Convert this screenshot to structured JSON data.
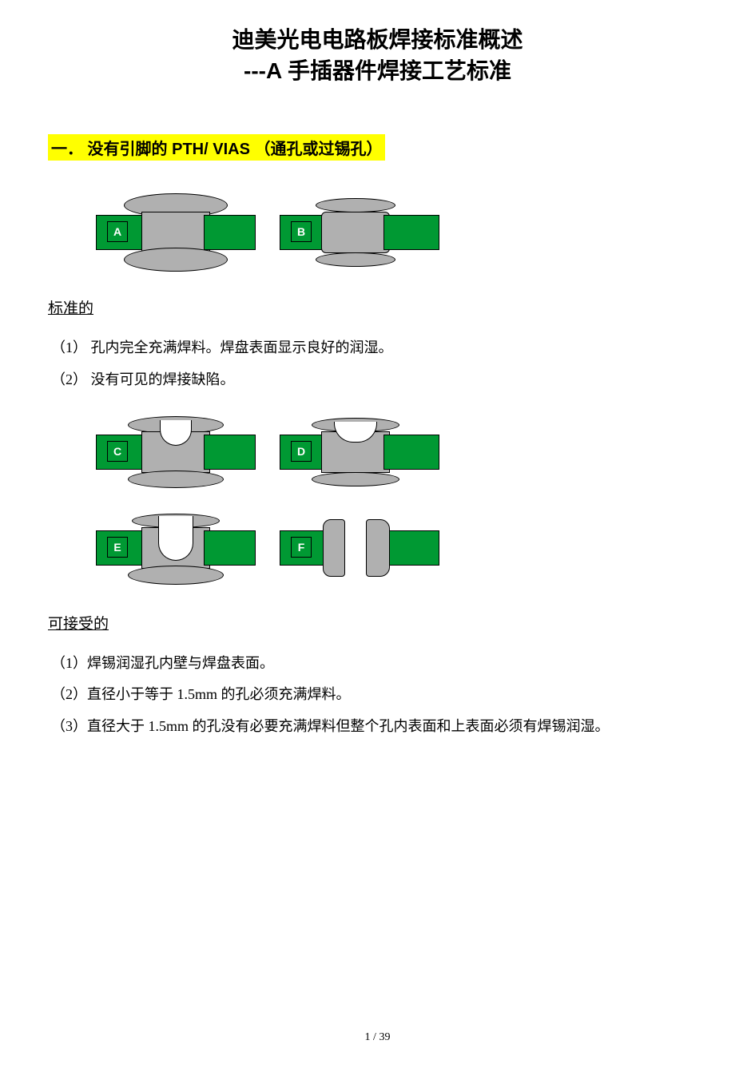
{
  "colors": {
    "pcb_green": "#009933",
    "solder_gray": "#b0b0b0",
    "barrel_orange": "#ff6600",
    "highlight_yellow": "#ffff00",
    "text_black": "#000000",
    "label_text": "#ffffff"
  },
  "title": {
    "line1": "迪美光电电路板焊接标准概述",
    "line2": "---A 手插器件焊接工艺标准"
  },
  "section1": {
    "heading": "一．  没有引脚的 PTH/ VIAS （通孔或过锡孔）"
  },
  "standard": {
    "heading": "标准的",
    "item1": "（1） 孔内完全充满焊料。焊盘表面显示良好的润湿。",
    "item2": "（2） 没有可见的焊接缺陷。"
  },
  "acceptable": {
    "heading": "可接受的",
    "item1": "（1）焊锡润湿孔内壁与焊盘表面。",
    "item2": "（2）直径小于等于 1.5mm 的孔必须充满焊料。",
    "item3": "（3）直径大于 1.5mm 的孔没有必要充满焊料但整个孔内表面和上表面必须有焊锡润湿。"
  },
  "diagrams": {
    "row1": [
      {
        "label": "A",
        "shape": "full-oval"
      },
      {
        "label": "B",
        "shape": "full-wide"
      }
    ],
    "row2": [
      {
        "label": "C",
        "shape": "concave"
      },
      {
        "label": "D",
        "shape": "concave-wide"
      }
    ],
    "row3": [
      {
        "label": "E",
        "shape": "deep-concave"
      },
      {
        "label": "F",
        "shape": "side-fill"
      }
    ]
  },
  "footer": {
    "page": "1",
    "sep": " / ",
    "total": "39"
  }
}
